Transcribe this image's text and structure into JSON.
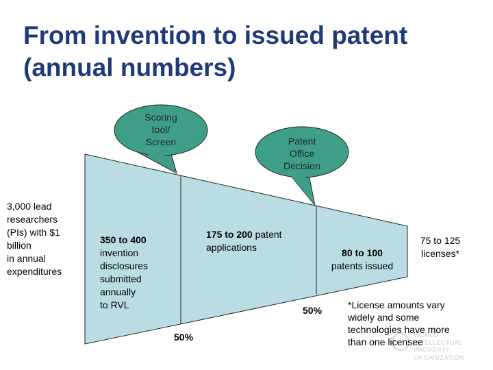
{
  "title": {
    "line1": "From invention to issued patent",
    "line2": "(annual numbers)"
  },
  "colors": {
    "title": "#1f3a78",
    "funnel_fill": "#b9dde3",
    "bubble_fill": "#3f9e88"
  },
  "bubbles": {
    "scoring": "Scoring\ntool/\nScreen",
    "patent_office": "Patent\nOffice\nDecision"
  },
  "left_label": "3,000 lead\nresearchers\n(PIs) with $1\nbillion\n in annual\nexpenditures",
  "stages": {
    "disclosures_number": "350 to 400",
    "disclosures_rest": "invention\ndisclosures\nsubmitted\nannually\nto RVL",
    "applications_number": "175 to 200",
    "applications_rest": " patent\napplications",
    "issued_number": "80 to 100",
    "issued_rest": "patents issued",
    "licenses": "75 to 125\nlicenses*"
  },
  "percentages": {
    "first": "50%",
    "second": "50%"
  },
  "footnote": "*License amounts vary\nwidely and some\ntechnologies have more\nthan one licensee",
  "watermark": {
    "logo_icon": "wipo-logo-icon",
    "text": "WORLD\nINTELLECTUAL PROPERTY\nORGANIZATION"
  }
}
